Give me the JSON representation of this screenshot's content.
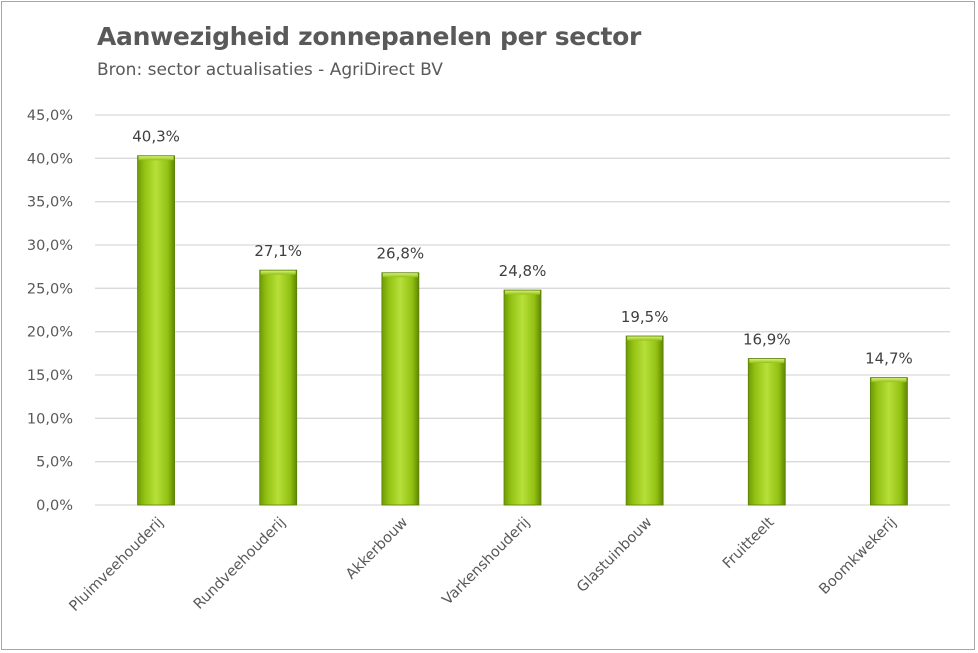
{
  "chart_data": {
    "type": "bar",
    "title": "Aanwezigheid zonnepanelen per sector",
    "subtitle": "Bron: sector actualisaties - AgriDirect BV",
    "categories": [
      "Pluimveehouderij",
      "Rundveehouderij",
      "Akkerbouw",
      "Varkenshouderij",
      "Glastuinbouw",
      "Fruitteelt",
      "Boomkwekerij"
    ],
    "values": [
      40.3,
      27.1,
      26.8,
      24.8,
      19.5,
      16.9,
      14.7
    ],
    "data_labels": [
      "40,3%",
      "27,1%",
      "26,8%",
      "24,8%",
      "19,5%",
      "16,9%",
      "14,7%"
    ],
    "ylim": [
      0,
      45
    ],
    "yticks": [
      "0,0%",
      "5,0%",
      "10,0%",
      "15,0%",
      "20,0%",
      "25,0%",
      "30,0%",
      "35,0%",
      "40,0%",
      "45,0%"
    ],
    "grid": true,
    "bar_color": "#92c112",
    "xlabel": "",
    "ylabel": ""
  }
}
